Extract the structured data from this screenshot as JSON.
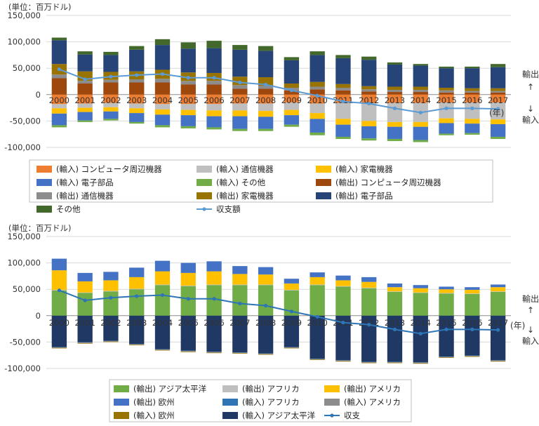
{
  "chart_data": [
    {
      "type": "bar",
      "unit_label": "(単位：百万ドル)",
      "year_suffix": "(年)",
      "export_label": "輸出",
      "import_label": "輸入",
      "categories": [
        "2000",
        "2001",
        "2002",
        "2003",
        "2004",
        "2005",
        "2006",
        "2007",
        "2008",
        "2009",
        "2010",
        "2011",
        "2012",
        "2013",
        "2014",
        "2015",
        "2016",
        "2017"
      ],
      "ylim": [
        -100000,
        150000
      ],
      "yticks": [
        150000,
        100000,
        50000,
        0,
        -50000,
        -100000
      ],
      "ytick_labels": [
        "150,000",
        "100,000",
        "50,000",
        "0",
        "-50,000",
        "-100,000"
      ],
      "stack_groups": {
        "positive": [
          "(輸出) コンピュータ周辺機器",
          "(輸出) 通信機器",
          "(輸出) 家電機器",
          "(輸出) 電子部品",
          "その他"
        ],
        "negative": [
          "(輸入) コンピュータ周辺機器",
          "(輸入) 通信機器",
          "(輸入) 家電機器",
          "(輸入) 電子部品",
          "(輸入) その他"
        ]
      },
      "series": [
        {
          "name": "(輸入) コンピュータ周辺機器",
          "color": "#ed7d31",
          "values": [
            -18000,
            -17000,
            -16000,
            -17000,
            -18000,
            -18000,
            -18000,
            -17000,
            -17000,
            -15000,
            -17000,
            -16000,
            -16000,
            -16000,
            -16000,
            -15000,
            -15000,
            -15000
          ]
        },
        {
          "name": "(輸入) 通信機器",
          "color": "#bfbfbf",
          "values": [
            -8000,
            -8000,
            -8000,
            -9000,
            -10000,
            -11000,
            -12000,
            -13000,
            -14000,
            -14000,
            -18000,
            -30000,
            -34000,
            -36000,
            -36000,
            -30000,
            -31000,
            -32000
          ]
        },
        {
          "name": "(輸入) 家電機器",
          "color": "#ffc000",
          "values": [
            -10000,
            -8000,
            -8000,
            -9000,
            -10000,
            -10000,
            -11000,
            -11000,
            -11000,
            -10000,
            -11000,
            -11000,
            -10000,
            -9000,
            -9000,
            -9000,
            -9000,
            -9000
          ]
        },
        {
          "name": "(輸入) 電子部品",
          "color": "#4472c4",
          "values": [
            -22000,
            -16000,
            -14000,
            -17000,
            -20000,
            -21000,
            -21000,
            -24000,
            -23000,
            -18000,
            -26000,
            -23000,
            -23000,
            -23000,
            -25000,
            -20000,
            -18000,
            -24000
          ]
        },
        {
          "name": "(輸入) その他",
          "color": "#70ad47",
          "values": [
            -4000,
            -3000,
            -3000,
            -3000,
            -4000,
            -4000,
            -4000,
            -4000,
            -4000,
            -4000,
            -5000,
            -4000,
            -4000,
            -4000,
            -4000,
            -3000,
            -3000,
            -4000
          ]
        },
        {
          "name": "(輸出) コンピュータ周辺機器",
          "color": "#9e480e",
          "values": [
            31000,
            21000,
            23000,
            23000,
            23000,
            19000,
            19000,
            11000,
            11000,
            8000,
            10000,
            8000,
            6000,
            5000,
            5000,
            4000,
            4000,
            4000
          ]
        },
        {
          "name": "(輸出) 通信機器",
          "color": "#8c8c8c",
          "values": [
            7000,
            5000,
            5000,
            6000,
            7000,
            7000,
            7000,
            7000,
            6000,
            5000,
            5000,
            5000,
            4000,
            4000,
            4000,
            4000,
            3000,
            3000
          ]
        },
        {
          "name": "(輸出) 家電機器",
          "color": "#997300",
          "values": [
            20000,
            18000,
            15000,
            15000,
            17000,
            16000,
            15000,
            16000,
            16000,
            8000,
            9000,
            7000,
            6000,
            6000,
            6000,
            5000,
            5000,
            5000
          ]
        },
        {
          "name": "(輸出) 電子部品",
          "color": "#264478",
          "values": [
            45000,
            32000,
            32000,
            41000,
            47000,
            45000,
            47000,
            51000,
            50000,
            44000,
            51000,
            49000,
            50000,
            42000,
            40000,
            37000,
            38000,
            40000
          ]
        },
        {
          "name": "その他",
          "color": "#43682b",
          "values": [
            5000,
            6000,
            6000,
            7000,
            11000,
            12000,
            14000,
            9000,
            9000,
            6000,
            7000,
            6000,
            6000,
            4000,
            3000,
            3000,
            3000,
            6000
          ]
        },
        {
          "name": "収支額",
          "color": "#5b9bd5",
          "kind": "line",
          "values": [
            48000,
            29000,
            34000,
            37000,
            39000,
            32000,
            32000,
            23000,
            19000,
            8000,
            -2000,
            -13000,
            -17000,
            -26000,
            -34000,
            -26000,
            -26000,
            -27000
          ]
        }
      ]
    },
    {
      "type": "bar",
      "unit_label": "(単位：百万ドル)",
      "year_suffix": "(年)",
      "export_label": "輸出",
      "import_label": "輸入",
      "categories": [
        "2000",
        "2001",
        "2002",
        "2003",
        "2004",
        "2005",
        "2006",
        "2007",
        "2008",
        "2009",
        "2010",
        "2011",
        "2012",
        "2013",
        "2014",
        "2015",
        "2016",
        "2017"
      ],
      "ylim": [
        -100000,
        150000
      ],
      "yticks": [
        150000,
        100000,
        50000,
        0,
        -50000,
        -100000
      ],
      "ytick_labels": [
        "150,000",
        "100,000",
        "50,000",
        "0",
        "-50,000",
        "-100,000"
      ],
      "stack_groups": {
        "positive": [
          "(輸出) アジア太平洋",
          "(輸出) アフリカ",
          "(輸出) アメリカ",
          "(輸出) 欧州"
        ],
        "negative": [
          "(輸入) アジア太平洋",
          "(輸入) アフリカ",
          "(輸入) アメリカ",
          "(輸入) 欧州"
        ]
      },
      "series": [
        {
          "name": "(輸出) アジア太平洋",
          "color": "#70ad47",
          "values": [
            48000,
            43000,
            46000,
            50000,
            58000,
            56000,
            58000,
            58000,
            58000,
            48000,
            58000,
            55000,
            52000,
            45000,
            43000,
            42000,
            41000,
            45000
          ]
        },
        {
          "name": "(輸出) アフリカ",
          "color": "#bfbfbf",
          "values": [
            1000,
            1000,
            1000,
            1000,
            1000,
            1000,
            1000,
            1000,
            1000,
            1000,
            1000,
            1000,
            1000,
            1000,
            1000,
            1000,
            1000,
            1000
          ]
        },
        {
          "name": "(輸出) アメリカ",
          "color": "#ffc000",
          "values": [
            37000,
            21000,
            20000,
            22000,
            25000,
            24000,
            25000,
            20000,
            19000,
            12000,
            14000,
            11000,
            11000,
            8000,
            8000,
            7000,
            7000,
            8000
          ]
        },
        {
          "name": "(輸出) 欧州",
          "color": "#4472c4",
          "values": [
            22000,
            16000,
            16000,
            18000,
            20000,
            19000,
            19000,
            15000,
            14000,
            9000,
            9000,
            9000,
            9000,
            7000,
            6000,
            5000,
            5000,
            5000
          ]
        },
        {
          "name": "(輸入) アフリカ",
          "color": "#2e75b6",
          "values": [
            -500,
            -500,
            -500,
            -500,
            -500,
            -500,
            -500,
            -500,
            -500,
            -500,
            -500,
            -500,
            -500,
            -500,
            -500,
            -500,
            -500,
            -500
          ]
        },
        {
          "name": "(輸入) アメリカ",
          "color": "#8c8c8c",
          "values": [
            -1000,
            -1000,
            -1000,
            -1000,
            -1000,
            -1000,
            -1000,
            -1000,
            -1000,
            -1000,
            -1000,
            -1000,
            -1000,
            -1000,
            -1000,
            -1000,
            -1000,
            -1000
          ]
        },
        {
          "name": "(輸入) 欧州",
          "color": "#997300",
          "values": [
            -1000,
            -1000,
            -1000,
            -1000,
            -1000,
            -1000,
            -1000,
            -1000,
            -1000,
            -1000,
            -1000,
            -1000,
            -1000,
            -1000,
            -1000,
            -1000,
            -1000,
            -1000
          ]
        },
        {
          "name": "(輸入) アジア太平洋",
          "color": "#203864",
          "values": [
            -59500,
            -50500,
            -47500,
            -53500,
            -63500,
            -66500,
            -68500,
            -69500,
            -71500,
            -59500,
            -81500,
            -84500,
            -87500,
            -87500,
            -88500,
            -77500,
            -75500,
            -84500
          ]
        },
        {
          "name": "収支",
          "color": "#2e75b6",
          "kind": "line",
          "values": [
            48000,
            29000,
            34000,
            37000,
            39000,
            32000,
            32000,
            23000,
            19000,
            8000,
            -2000,
            -13000,
            -17000,
            -26000,
            -34000,
            -26000,
            -26000,
            -27000
          ]
        }
      ]
    }
  ],
  "legends": [
    {
      "items": [
        {
          "label": "(輸入) コンピュータ周辺機器",
          "color": "#ed7d31",
          "kind": "box"
        },
        {
          "label": "(輸入) 通信機器",
          "color": "#bfbfbf",
          "kind": "box"
        },
        {
          "label": "(輸入) 家電機器",
          "color": "#ffc000",
          "kind": "box"
        },
        {
          "label": "(輸入) 電子部品",
          "color": "#4472c4",
          "kind": "box"
        },
        {
          "label": "(輸入) その他",
          "color": "#70ad47",
          "kind": "box"
        },
        {
          "label": "(輸出) コンピュータ周辺機器",
          "color": "#9e480e",
          "kind": "box"
        },
        {
          "label": "(輸出) 通信機器",
          "color": "#8c8c8c",
          "kind": "box"
        },
        {
          "label": "(輸出) 家電機器",
          "color": "#997300",
          "kind": "box"
        },
        {
          "label": "(輸出) 電子部品",
          "color": "#264478",
          "kind": "box"
        },
        {
          "label": "その他",
          "color": "#43682b",
          "kind": "box"
        },
        {
          "label": "収支額",
          "color": "#5b9bd5",
          "kind": "line"
        }
      ]
    },
    {
      "items": [
        {
          "label": "(輸出) アジア太平洋",
          "color": "#70ad47",
          "kind": "box"
        },
        {
          "label": "(輸出) アフリカ",
          "color": "#bfbfbf",
          "kind": "box"
        },
        {
          "label": "(輸出) アメリカ",
          "color": "#ffc000",
          "kind": "box"
        },
        {
          "label": "(輸出) 欧州",
          "color": "#4472c4",
          "kind": "box"
        },
        {
          "label": "(輸入) アフリカ",
          "color": "#2e75b6",
          "kind": "box"
        },
        {
          "label": "(輸入) アメリカ",
          "color": "#8c8c8c",
          "kind": "box"
        },
        {
          "label": "(輸入) 欧州",
          "color": "#997300",
          "kind": "box"
        },
        {
          "label": "(輸入) アジア太平洋",
          "color": "#203864",
          "kind": "box"
        },
        {
          "label": "収支",
          "color": "#2e75b6",
          "kind": "line"
        }
      ]
    }
  ]
}
